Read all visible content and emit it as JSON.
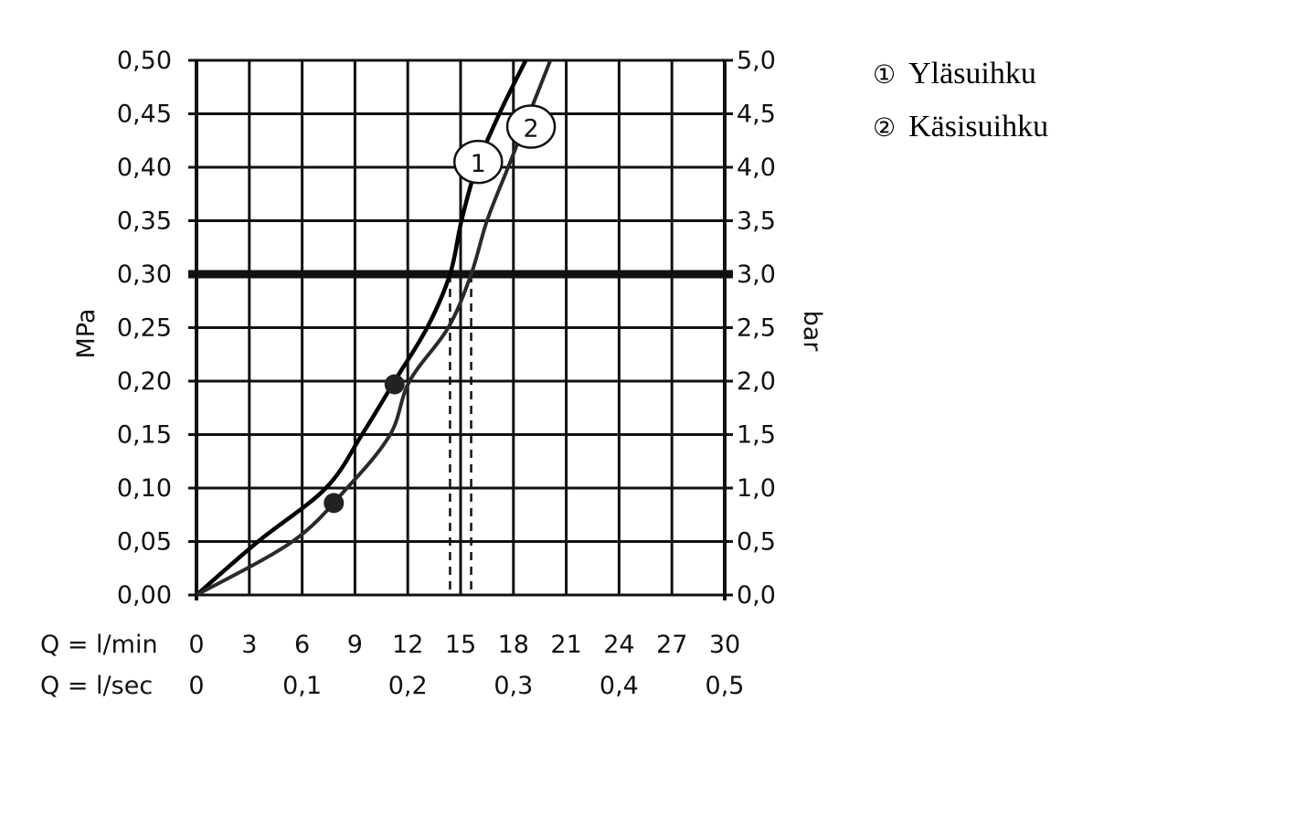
{
  "chart_data": {
    "type": "line",
    "title": "",
    "xlabel_rows": [
      "Q = l/min",
      "Q = l/sec"
    ],
    "ylabel_left": "MPa",
    "ylabel_right": "bar",
    "xlim": [
      0,
      30
    ],
    "ylim": [
      0,
      0.5
    ],
    "grid": true,
    "x_ticks": [
      "0",
      "3",
      "6",
      "9",
      "12",
      "15",
      "18",
      "21",
      "24",
      "27",
      "30"
    ],
    "x_tick_values": [
      0,
      3,
      6,
      9,
      12,
      15,
      18,
      21,
      24,
      27,
      30
    ],
    "x2_ticks": [
      "0",
      "0,1",
      "0,2",
      "0,3",
      "0,4",
      "0,5"
    ],
    "x2_tick_values": [
      0,
      6,
      12,
      18,
      24,
      30
    ],
    "y_ticks_left": [
      "0,00",
      "0,05",
      "0,10",
      "0,15",
      "0,20",
      "0,25",
      "0,30",
      "0,35",
      "0,40",
      "0,45",
      "0,50"
    ],
    "y_ticks_right": [
      "0,0",
      "0,5",
      "1,0",
      "1,5",
      "2,0",
      "2,5",
      "3,0",
      "3,5",
      "4,0",
      "4,5",
      "5,0"
    ],
    "y_tick_values": [
      0,
      0.05,
      0.1,
      0.15,
      0.2,
      0.25,
      0.3,
      0.35,
      0.4,
      0.45,
      0.5
    ],
    "reference_line": {
      "y": 0.3
    },
    "dashed_lines_x": [
      14.4,
      15.6
    ],
    "series": [
      {
        "name": "Yläsuihku",
        "marker_label": "1",
        "color": "#000000",
        "x": [
          0,
          3.5,
          7.35,
          9.4,
          11.25,
          13.1,
          14.4,
          15.05,
          15.9,
          17.2,
          18.7
        ],
        "y": [
          0,
          0.05,
          0.1,
          0.15,
          0.2,
          0.25,
          0.3,
          0.35,
          0.4,
          0.45,
          0.5
        ],
        "point": {
          "x": 11.25,
          "y": 0.197
        },
        "label_at": {
          "x": 16.0,
          "y": 0.405
        }
      },
      {
        "name": "Käsisuihku",
        "marker_label": "2",
        "color": "#2a2a2a",
        "x": [
          0,
          5.45,
          8.55,
          11.0,
          12.1,
          14.3,
          15.6,
          16.5,
          17.7,
          18.9,
          20.1
        ],
        "y": [
          0,
          0.05,
          0.1,
          0.15,
          0.2,
          0.25,
          0.3,
          0.35,
          0.4,
          0.45,
          0.5
        ],
        "point": {
          "x": 7.8,
          "y": 0.086
        },
        "label_at": {
          "x": 19.0,
          "y": 0.438
        }
      }
    ]
  },
  "legend": [
    {
      "symbol": "①",
      "label": "Yläsuihku"
    },
    {
      "symbol": "②",
      "label": "Käsisuihku"
    }
  ]
}
